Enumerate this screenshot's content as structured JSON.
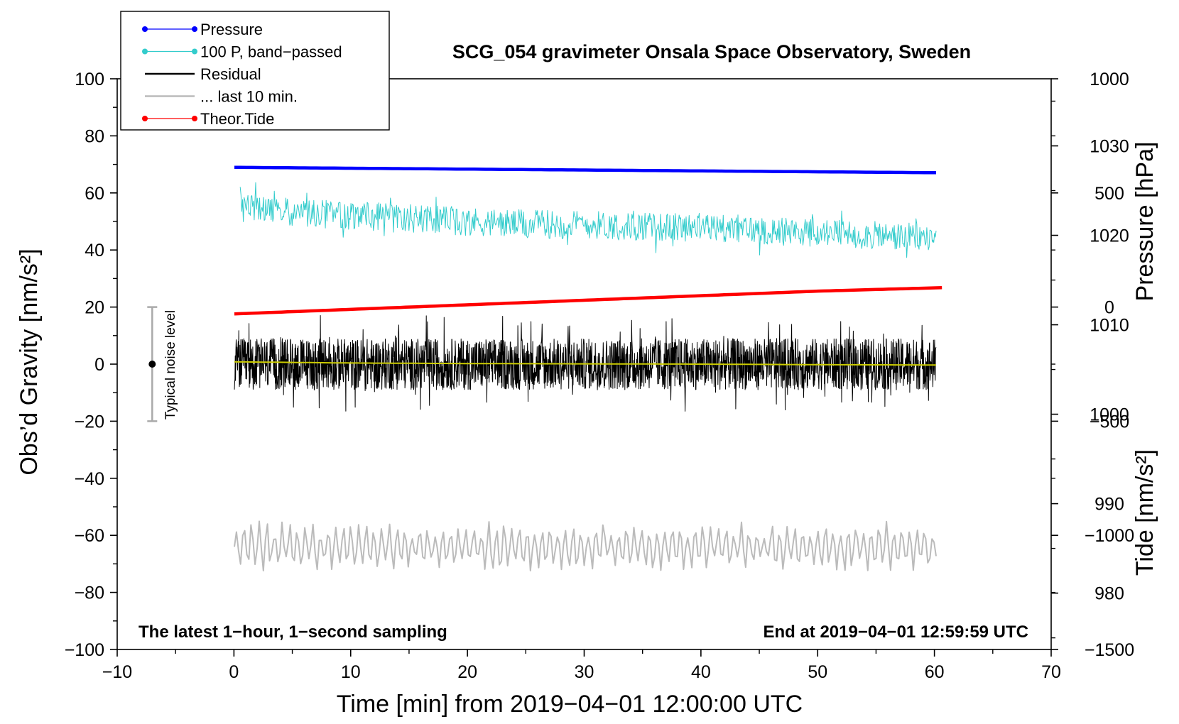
{
  "chart_data": {
    "type": "line",
    "title": "SCG_054 gravimeter Onsala Space Observatory, Sweden",
    "xlabel": "Time [min] from 2019−04−01 12:00:00 UTC",
    "ylabel": "Obs’d Gravity [nm/s²]",
    "y2label": "Pressure [hPa]",
    "y3label": "Tide [nm/s²]",
    "xlim": [
      -10,
      70
    ],
    "ylim": [
      -100,
      100
    ],
    "pressure_lim": [
      973.7,
      1037.5
    ],
    "tide_lim": [
      -1500,
      1000
    ],
    "x_ticks": [
      "−10",
      "0",
      "10",
      "20",
      "30",
      "40",
      "50",
      "60",
      "70"
    ],
    "y_ticks": [
      "−100",
      "−80",
      "−60",
      "−40",
      "−20",
      "0",
      "20",
      "40",
      "60",
      "80",
      "100"
    ],
    "pressure_ticks": [
      "980",
      "990",
      "1000",
      "1010",
      "1020",
      "1030"
    ],
    "tide_ticks": [
      "−1500",
      "−1000",
      "−500",
      "0",
      "500",
      "1000"
    ],
    "legend": [
      {
        "label": "Pressure",
        "color": "#0000ff",
        "marker": true
      },
      {
        "label": "100 P, band−passed",
        "color": "#33cccc",
        "marker": true
      },
      {
        "label": "Residual",
        "color": "#000000",
        "marker": false
      },
      {
        "label": "... last 10 min.",
        "color": "#bbbbbb",
        "marker": false
      },
      {
        "label": "Theor.Tide",
        "color": "#ff0000",
        "marker": true
      }
    ],
    "legend_position": "top-left",
    "annotations": {
      "left": "The latest 1−hour, 1−second sampling",
      "right": "End at 2019−04−01 12:59:59 UTC",
      "noise": "Typical noise level"
    },
    "noise_bar": {
      "x": -7,
      "center": 0,
      "half_range": 20
    },
    "series": [
      {
        "name": "Pressure",
        "color": "#0000ff",
        "axis": "pressure",
        "x": [
          0,
          10,
          20,
          30,
          40,
          50,
          60
        ],
        "y": [
          1027.6,
          1027.5,
          1027.4,
          1027.3,
          1027.2,
          1027.1,
          1027.0
        ]
      },
      {
        "name": "100 P, band−passed",
        "color": "#33cccc",
        "axis": "gravity",
        "style": "noise",
        "x": [
          0.5,
          5,
          10,
          15,
          20,
          25,
          30,
          35,
          40,
          45,
          50,
          55,
          60
        ],
        "y": [
          55,
          53,
          52,
          51,
          50,
          49,
          49,
          48,
          48,
          47,
          46,
          45,
          44
        ],
        "amplitude": 5
      },
      {
        "name": "Residual",
        "color": "#000000",
        "axis": "gravity",
        "style": "noise",
        "x": [
          0,
          60
        ],
        "y": [
          0,
          0
        ],
        "amplitude": 9
      },
      {
        "name": "Residual (smoothed)",
        "color": "#cccc00",
        "axis": "gravity",
        "x": [
          0,
          10,
          20,
          30,
          40,
          50,
          60
        ],
        "y": [
          0.8,
          0.4,
          0.2,
          0.1,
          0,
          -0.2,
          -0.3
        ]
      },
      {
        "name": "... last 10 min.",
        "color": "#bbbbbb",
        "axis": "gravity",
        "style": "noise",
        "x": [
          0,
          60
        ],
        "y": [
          -64,
          -64
        ],
        "amplitude": 7
      },
      {
        "name": "Theor.Tide",
        "color": "#ff0000",
        "axis": "tide",
        "x": [
          0,
          10,
          20,
          30,
          40,
          50,
          60.5
        ],
        "y": [
          -30,
          -10,
          10,
          30,
          50,
          70,
          85
        ]
      }
    ]
  }
}
